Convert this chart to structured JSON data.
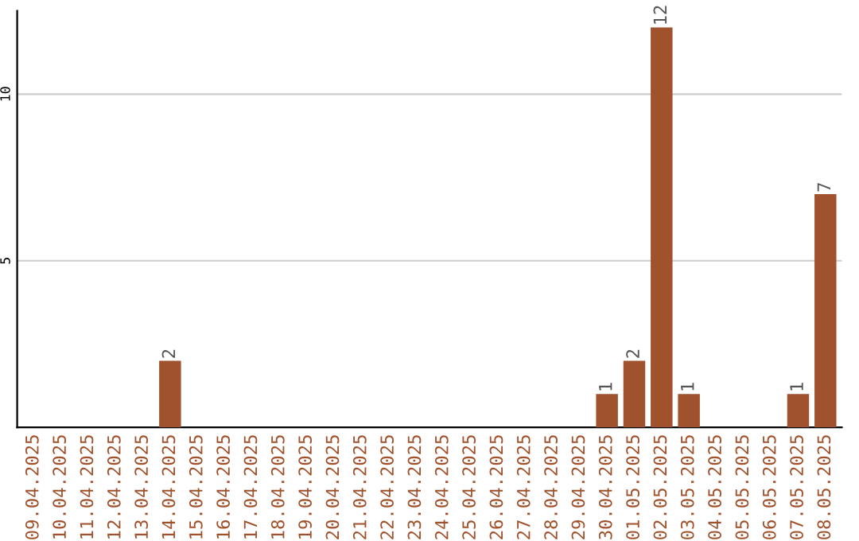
{
  "chart_data": {
    "type": "bar",
    "categories": [
      "09.04.2025",
      "10.04.2025",
      "11.04.2025",
      "12.04.2025",
      "13.04.2025",
      "14.04.2025",
      "15.04.2025",
      "16.04.2025",
      "17.04.2025",
      "18.04.2025",
      "19.04.2025",
      "20.04.2025",
      "21.04.2025",
      "22.04.2025",
      "23.04.2025",
      "24.04.2025",
      "25.04.2025",
      "26.04.2025",
      "27.04.2025",
      "28.04.2025",
      "29.04.2025",
      "30.04.2025",
      "01.05.2025",
      "02.05.2025",
      "03.05.2025",
      "04.05.2025",
      "05.05.2025",
      "06.05.2025",
      "07.05.2025",
      "08.05.2025"
    ],
    "values": [
      0,
      0,
      0,
      0,
      0,
      2,
      0,
      0,
      0,
      0,
      0,
      0,
      0,
      0,
      0,
      0,
      0,
      0,
      0,
      0,
      0,
      1,
      2,
      12,
      1,
      0,
      0,
      0,
      1,
      7
    ],
    "value_labels": [
      null,
      null,
      null,
      null,
      null,
      "2",
      null,
      null,
      null,
      null,
      null,
      null,
      null,
      null,
      null,
      null,
      null,
      null,
      null,
      null,
      null,
      "1",
      "2",
      "12",
      "1",
      null,
      null,
      null,
      "1",
      "7"
    ],
    "color": "#a0522d",
    "ylim": [
      0,
      12.5
    ],
    "yticks": [
      5,
      10
    ],
    "grid": "y"
  }
}
